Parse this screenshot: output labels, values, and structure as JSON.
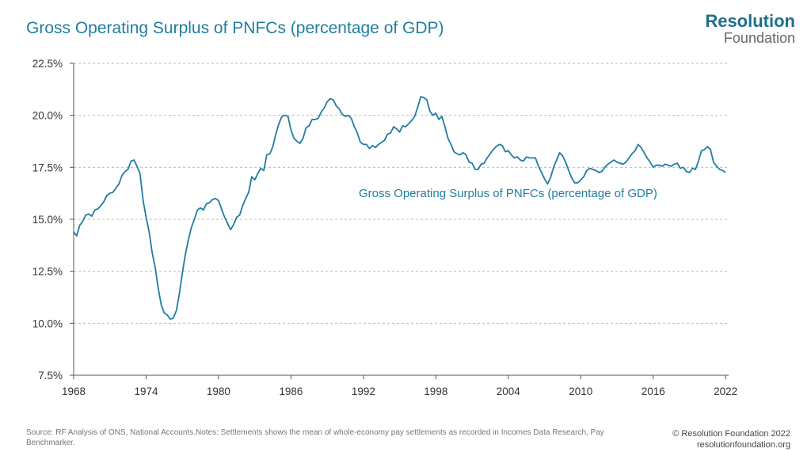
{
  "header": {
    "title": "Gross Operating Surplus of PNFCs (percentage of GDP)",
    "logo_line1": "Resolution",
    "logo_line2": "Foundation"
  },
  "footer": {
    "source": "Source: RF Analysis of ONS, National Accounts.Notes: Settlements shows the mean of whole-economy pay settlements as recorded in Incomes Data Research, Pay Benchmarker.",
    "copyright": "© Resolution Foundation 2022",
    "website": "resolutionfoundation.org"
  },
  "colors": {
    "line": "#1f7ea0",
    "grid": "#bbbbbb",
    "axis": "#555555"
  },
  "chart_data": {
    "type": "line",
    "title": "Gross Operating Surplus of PNFCs (percentage of GDP)",
    "annotation": "Gross Operating Surplus of PNFCs (percentage of GDP)",
    "xlabel": "",
    "ylabel": "",
    "xlim": [
      1968,
      2022.25
    ],
    "ylim": [
      7.5,
      22.5
    ],
    "x_ticks": [
      1968,
      1974,
      1980,
      1986,
      1992,
      1998,
      2004,
      2010,
      2016,
      2022
    ],
    "y_ticks": [
      7.5,
      10.0,
      12.5,
      15.0,
      17.5,
      20.0,
      22.5
    ],
    "y_tick_labels": [
      "7.5%",
      "10.0%",
      "12.5%",
      "15.0%",
      "17.5%",
      "20.0%",
      "22.5%"
    ],
    "grid": true,
    "series": [
      {
        "name": "Gross Operating Surplus of PNFCs (percentage of GDP)",
        "points": [
          [
            1968.0,
            14.4
          ],
          [
            1968.25,
            14.2
          ],
          [
            1968.5,
            14.7
          ],
          [
            1968.75,
            14.9
          ],
          [
            1969.0,
            15.2
          ],
          [
            1969.25,
            15.25
          ],
          [
            1969.5,
            15.15
          ],
          [
            1969.75,
            15.45
          ],
          [
            1970.0,
            15.5
          ],
          [
            1970.25,
            15.65
          ],
          [
            1970.5,
            15.85
          ],
          [
            1970.75,
            16.15
          ],
          [
            1971.0,
            16.25
          ],
          [
            1971.25,
            16.3
          ],
          [
            1971.5,
            16.5
          ],
          [
            1971.75,
            16.7
          ],
          [
            1972.0,
            17.1
          ],
          [
            1972.25,
            17.3
          ],
          [
            1972.5,
            17.4
          ],
          [
            1972.75,
            17.8
          ],
          [
            1973.0,
            17.85
          ],
          [
            1973.25,
            17.55
          ],
          [
            1973.5,
            17.2
          ],
          [
            1973.75,
            15.9
          ],
          [
            1974.0,
            15.1
          ],
          [
            1974.25,
            14.4
          ],
          [
            1974.5,
            13.4
          ],
          [
            1974.75,
            12.7
          ],
          [
            1975.0,
            11.7
          ],
          [
            1975.25,
            10.9
          ],
          [
            1975.5,
            10.5
          ],
          [
            1975.75,
            10.4
          ],
          [
            1976.0,
            10.2
          ],
          [
            1976.25,
            10.25
          ],
          [
            1976.5,
            10.6
          ],
          [
            1976.75,
            11.4
          ],
          [
            1977.0,
            12.4
          ],
          [
            1977.25,
            13.3
          ],
          [
            1977.5,
            14.0
          ],
          [
            1977.75,
            14.6
          ],
          [
            1978.0,
            15.0
          ],
          [
            1978.25,
            15.45
          ],
          [
            1978.5,
            15.55
          ],
          [
            1978.75,
            15.45
          ],
          [
            1979.0,
            15.75
          ],
          [
            1979.25,
            15.8
          ],
          [
            1979.5,
            15.95
          ],
          [
            1979.75,
            16.0
          ],
          [
            1980.0,
            15.9
          ],
          [
            1980.25,
            15.5
          ],
          [
            1980.5,
            15.1
          ],
          [
            1980.75,
            14.8
          ],
          [
            1981.0,
            14.5
          ],
          [
            1981.25,
            14.75
          ],
          [
            1981.5,
            15.1
          ],
          [
            1981.75,
            15.2
          ],
          [
            1982.0,
            15.65
          ],
          [
            1982.25,
            16.0
          ],
          [
            1982.5,
            16.3
          ],
          [
            1982.75,
            17.05
          ],
          [
            1983.0,
            16.9
          ],
          [
            1983.25,
            17.2
          ],
          [
            1983.5,
            17.45
          ],
          [
            1983.75,
            17.35
          ],
          [
            1984.0,
            18.1
          ],
          [
            1984.25,
            18.15
          ],
          [
            1984.5,
            18.5
          ],
          [
            1984.75,
            19.1
          ],
          [
            1985.0,
            19.6
          ],
          [
            1985.25,
            19.95
          ],
          [
            1985.5,
            20.0
          ],
          [
            1985.75,
            19.95
          ],
          [
            1986.0,
            19.3
          ],
          [
            1986.25,
            18.9
          ],
          [
            1986.5,
            18.75
          ],
          [
            1986.75,
            18.65
          ],
          [
            1987.0,
            18.9
          ],
          [
            1987.25,
            19.4
          ],
          [
            1987.5,
            19.5
          ],
          [
            1987.75,
            19.8
          ],
          [
            1988.0,
            19.8
          ],
          [
            1988.25,
            19.85
          ],
          [
            1988.5,
            20.15
          ],
          [
            1988.75,
            20.35
          ],
          [
            1989.0,
            20.65
          ],
          [
            1989.25,
            20.8
          ],
          [
            1989.5,
            20.75
          ],
          [
            1989.75,
            20.45
          ],
          [
            1990.0,
            20.3
          ],
          [
            1990.25,
            20.05
          ],
          [
            1990.5,
            19.95
          ],
          [
            1990.75,
            20.0
          ],
          [
            1991.0,
            19.85
          ],
          [
            1991.25,
            19.45
          ],
          [
            1991.5,
            19.15
          ],
          [
            1991.75,
            18.7
          ],
          [
            1992.0,
            18.6
          ],
          [
            1992.25,
            18.6
          ],
          [
            1992.5,
            18.4
          ],
          [
            1992.75,
            18.55
          ],
          [
            1993.0,
            18.45
          ],
          [
            1993.25,
            18.6
          ],
          [
            1993.5,
            18.7
          ],
          [
            1993.75,
            18.8
          ],
          [
            1994.0,
            19.1
          ],
          [
            1994.25,
            19.15
          ],
          [
            1994.5,
            19.45
          ],
          [
            1994.75,
            19.35
          ],
          [
            1995.0,
            19.2
          ],
          [
            1995.25,
            19.5
          ],
          [
            1995.5,
            19.45
          ],
          [
            1995.75,
            19.6
          ],
          [
            1996.0,
            19.75
          ],
          [
            1996.25,
            19.95
          ],
          [
            1996.5,
            20.4
          ],
          [
            1996.75,
            20.9
          ],
          [
            1997.0,
            20.85
          ],
          [
            1997.25,
            20.75
          ],
          [
            1997.5,
            20.2
          ],
          [
            1997.75,
            20.0
          ],
          [
            1998.0,
            20.1
          ],
          [
            1998.25,
            19.8
          ],
          [
            1998.5,
            19.95
          ],
          [
            1998.75,
            19.45
          ],
          [
            1999.0,
            18.9
          ],
          [
            1999.25,
            18.6
          ],
          [
            1999.5,
            18.25
          ],
          [
            1999.75,
            18.15
          ],
          [
            2000.0,
            18.1
          ],
          [
            2000.25,
            18.2
          ],
          [
            2000.5,
            18.1
          ],
          [
            2000.75,
            17.75
          ],
          [
            2001.0,
            17.7
          ],
          [
            2001.25,
            17.4
          ],
          [
            2001.5,
            17.4
          ],
          [
            2001.75,
            17.65
          ],
          [
            2002.0,
            17.7
          ],
          [
            2002.25,
            17.95
          ],
          [
            2002.5,
            18.15
          ],
          [
            2002.75,
            18.35
          ],
          [
            2003.0,
            18.5
          ],
          [
            2003.25,
            18.6
          ],
          [
            2003.5,
            18.55
          ],
          [
            2003.75,
            18.25
          ],
          [
            2004.0,
            18.3
          ],
          [
            2004.25,
            18.1
          ],
          [
            2004.5,
            17.95
          ],
          [
            2004.75,
            18.0
          ],
          [
            2005.0,
            17.85
          ],
          [
            2005.25,
            17.8
          ],
          [
            2005.5,
            18.0
          ],
          [
            2005.75,
            17.95
          ],
          [
            2006.0,
            17.95
          ],
          [
            2006.25,
            17.95
          ],
          [
            2006.5,
            17.55
          ],
          [
            2006.75,
            17.25
          ],
          [
            2007.0,
            16.95
          ],
          [
            2007.25,
            16.7
          ],
          [
            2007.5,
            17.0
          ],
          [
            2007.75,
            17.5
          ],
          [
            2008.0,
            17.85
          ],
          [
            2008.25,
            18.2
          ],
          [
            2008.5,
            18.05
          ],
          [
            2008.75,
            17.75
          ],
          [
            2009.0,
            17.35
          ],
          [
            2009.25,
            17.0
          ],
          [
            2009.5,
            16.75
          ],
          [
            2009.75,
            16.75
          ],
          [
            2010.0,
            16.9
          ],
          [
            2010.25,
            17.05
          ],
          [
            2010.5,
            17.35
          ],
          [
            2010.75,
            17.45
          ],
          [
            2011.0,
            17.4
          ],
          [
            2011.25,
            17.35
          ],
          [
            2011.5,
            17.25
          ],
          [
            2011.75,
            17.3
          ],
          [
            2012.0,
            17.5
          ],
          [
            2012.25,
            17.65
          ],
          [
            2012.5,
            17.75
          ],
          [
            2012.75,
            17.85
          ],
          [
            2013.0,
            17.75
          ],
          [
            2013.25,
            17.7
          ],
          [
            2013.5,
            17.65
          ],
          [
            2013.75,
            17.75
          ],
          [
            2014.0,
            17.95
          ],
          [
            2014.25,
            18.15
          ],
          [
            2014.5,
            18.3
          ],
          [
            2014.75,
            18.6
          ],
          [
            2015.0,
            18.45
          ],
          [
            2015.25,
            18.2
          ],
          [
            2015.5,
            17.95
          ],
          [
            2015.75,
            17.75
          ],
          [
            2016.0,
            17.5
          ],
          [
            2016.25,
            17.6
          ],
          [
            2016.5,
            17.6
          ],
          [
            2016.75,
            17.55
          ],
          [
            2017.0,
            17.65
          ],
          [
            2017.25,
            17.6
          ],
          [
            2017.5,
            17.55
          ],
          [
            2017.75,
            17.65
          ],
          [
            2018.0,
            17.7
          ],
          [
            2018.25,
            17.45
          ],
          [
            2018.5,
            17.5
          ],
          [
            2018.75,
            17.3
          ],
          [
            2019.0,
            17.25
          ],
          [
            2019.25,
            17.45
          ],
          [
            2019.5,
            17.4
          ],
          [
            2019.75,
            17.8
          ],
          [
            2020.0,
            18.3
          ],
          [
            2020.25,
            18.35
          ],
          [
            2020.5,
            18.5
          ],
          [
            2020.75,
            18.35
          ],
          [
            2021.0,
            17.75
          ],
          [
            2021.25,
            17.55
          ],
          [
            2021.5,
            17.4
          ],
          [
            2021.75,
            17.35
          ],
          [
            2022.0,
            17.25
          ]
        ]
      }
    ]
  }
}
